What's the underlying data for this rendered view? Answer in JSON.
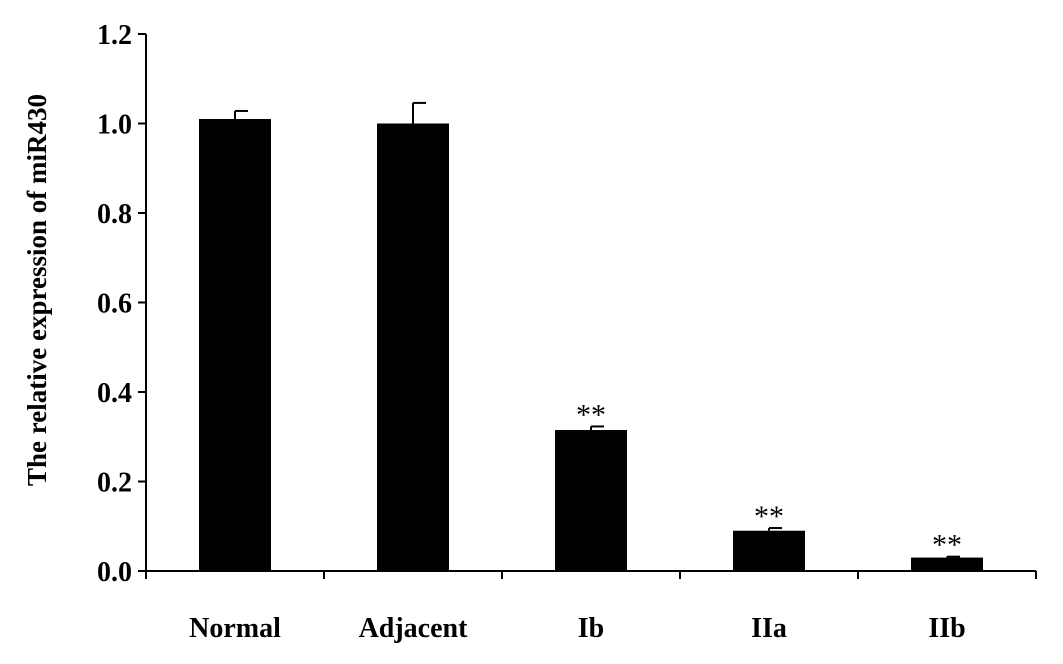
{
  "chart_data": {
    "type": "bar",
    "categories": [
      "Normal",
      "Adjacent",
      "Ib",
      "IIa",
      "IIb"
    ],
    "values": [
      1.01,
      1.0,
      0.315,
      0.09,
      0.03
    ],
    "errors": [
      0.018,
      0.046,
      0.008,
      0.006,
      0.002
    ],
    "annotations": [
      "",
      "",
      "**",
      "**",
      "**"
    ],
    "title": "",
    "xlabel": "",
    "ylabel": "The relative expression of miR430",
    "ylim": [
      0,
      1.2
    ],
    "yticks": [
      "0.0",
      "0.2",
      "0.4",
      "0.6",
      "0.8",
      "1.0",
      "1.2"
    ],
    "grid": false,
    "colors": {
      "bar": "#000000",
      "axis": "#000000"
    }
  }
}
